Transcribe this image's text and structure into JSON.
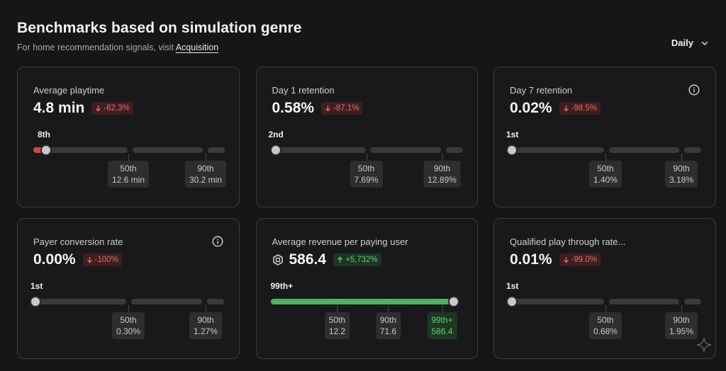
{
  "header": {
    "title": "Benchmarks based on simulation genre",
    "subtitle_prefix": "For home recommendation signals, visit ",
    "subtitle_link": "Acquisition",
    "period": "Daily"
  },
  "colors": {
    "negative": "#f0686a",
    "positive": "#5fd176",
    "track": "#3a3a3d",
    "accent_green": "#4bb35f"
  },
  "cards": [
    {
      "label": "Average playtime",
      "value": "4.8 min",
      "delta": "-62.3%",
      "delta_direction": "down",
      "rank": "8th",
      "position_percentile": 8,
      "markers": [
        {
          "label": "50th",
          "value": "12.6 min"
        },
        {
          "label": "90th",
          "value": "30.2 min"
        }
      ],
      "info_icon": false
    },
    {
      "label": "Day 1 retention",
      "value": "0.58%",
      "delta": "-87.1%",
      "delta_direction": "down",
      "rank": "2nd",
      "position_percentile": 2,
      "markers": [
        {
          "label": "50th",
          "value": "7.69%"
        },
        {
          "label": "90th",
          "value": "12.89%"
        }
      ],
      "info_icon": false
    },
    {
      "label": "Day 7 retention",
      "value": "0.02%",
      "delta": "-98.5%",
      "delta_direction": "down",
      "rank": "1st",
      "position_percentile": 1,
      "markers": [
        {
          "label": "50th",
          "value": "1.40%"
        },
        {
          "label": "90th",
          "value": "3.18%"
        }
      ],
      "info_icon": true
    },
    {
      "label": "Payer conversion rate",
      "value": "0.00%",
      "delta": "-100%",
      "delta_direction": "down",
      "rank": "1st",
      "position_percentile": 1,
      "markers": [
        {
          "label": "50th",
          "value": "0.30%"
        },
        {
          "label": "90th",
          "value": "1.27%"
        }
      ],
      "info_icon": true
    },
    {
      "label": "Average revenue per paying user",
      "value": "586.4",
      "value_icon": "robux-icon",
      "delta": "+5,732%",
      "delta_direction": "up",
      "rank": "99th+",
      "position_percentile": 99,
      "markers": [
        {
          "label": "50th",
          "value": "12.2"
        },
        {
          "label": "90th",
          "value": "71.6"
        },
        {
          "label": "99th+",
          "value": "586.4",
          "highlight": true
        }
      ],
      "info_icon": false
    },
    {
      "label": "Qualified play through rate...",
      "value": "0.01%",
      "delta": "-99.0%",
      "delta_direction": "down",
      "rank": "1st",
      "position_percentile": 1,
      "markers": [
        {
          "label": "50th",
          "value": "0.68%"
        },
        {
          "label": "90th",
          "value": "1.95%"
        }
      ],
      "info_icon": false
    }
  ]
}
